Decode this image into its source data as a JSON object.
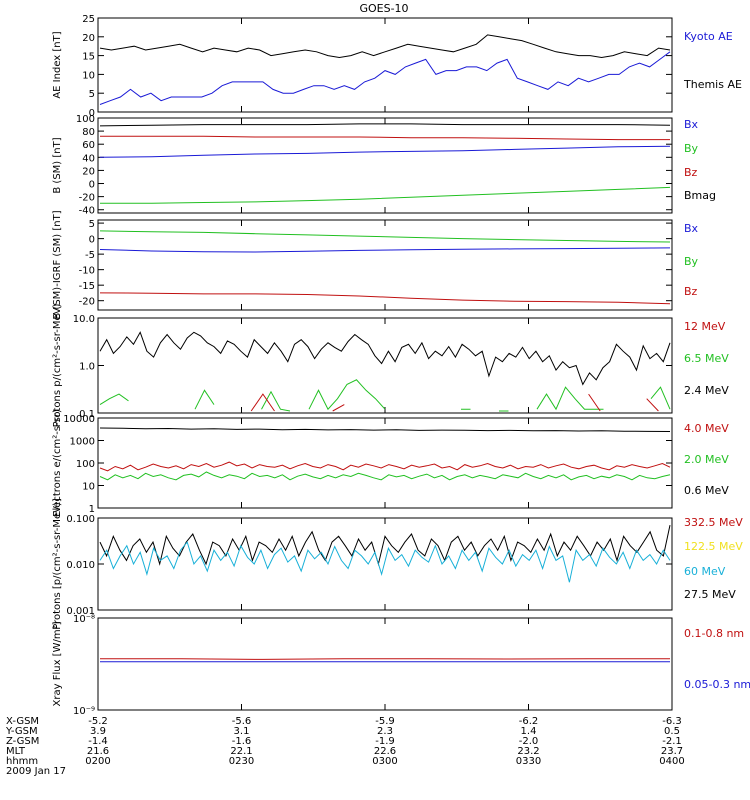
{
  "title": "GOES-10",
  "colors": {
    "black": "#000000",
    "blue": "#1a1ad6",
    "green": "#22c022",
    "red": "#c01010",
    "yellow": "#f0e020",
    "cyan": "#18b0d8"
  },
  "footer": {
    "row_labels": [
      "X-GSM",
      "Y-GSM",
      "Z-GSM",
      "MLT",
      "hhmm",
      "2009 Jan 17"
    ],
    "columns": [
      {
        "x": "-5.2",
        "y": "3.9",
        "z": "-1.4",
        "mlt": "21.6",
        "hhmm": "0200"
      },
      {
        "x": "-5.6",
        "y": "3.1",
        "z": "-1.6",
        "mlt": "22.1",
        "hhmm": "0230"
      },
      {
        "x": "-5.9",
        "y": "2.3",
        "z": "-1.9",
        "mlt": "22.6",
        "hhmm": "0300"
      },
      {
        "x": "-6.2",
        "y": "1.4",
        "z": "-2.0",
        "mlt": "23.2",
        "hhmm": "0330"
      },
      {
        "x": "-6.3",
        "y": "0.5",
        "z": "-2.1",
        "mlt": "23.7",
        "hhmm": "0400"
      }
    ]
  },
  "chart_data": [
    {
      "type": "line",
      "ylabel": "AE Index [nT]",
      "ylim": [
        0,
        25
      ],
      "yticks": [
        "0",
        "5",
        "10",
        "15",
        "20",
        "25"
      ],
      "legend": [
        {
          "name": "Kyoto AE",
          "color": "blue"
        },
        {
          "name": "Themis AE",
          "color": "black"
        }
      ],
      "series": [
        {
          "name": "Themis AE",
          "color": "black",
          "values": [
            17,
            16.5,
            17,
            17.5,
            16.5,
            17,
            17.5,
            18,
            17,
            16,
            17,
            16.5,
            16,
            17,
            16.5,
            15,
            15.5,
            16,
            16.5,
            16,
            15,
            14.5,
            15,
            16,
            15,
            16,
            17,
            18,
            17.5,
            17,
            16.5,
            16,
            17,
            18,
            20.5,
            20,
            19.5,
            19,
            18,
            17,
            16,
            15.5,
            15,
            15,
            14.5,
            15,
            16,
            15.5,
            15,
            17,
            16.5
          ]
        },
        {
          "name": "Kyoto AE",
          "color": "blue",
          "values": [
            2,
            3,
            4,
            6,
            4,
            5,
            3,
            4,
            4,
            4,
            4,
            5,
            7,
            8,
            8,
            8,
            8,
            6,
            5,
            5,
            6,
            7,
            7,
            6,
            7,
            6,
            8,
            9,
            11,
            10,
            12,
            13,
            14,
            10,
            11,
            11,
            12,
            12,
            11,
            13,
            14,
            9,
            8,
            7,
            6,
            8,
            7,
            9,
            8,
            9,
            10,
            10,
            12,
            13,
            12,
            14,
            16
          ]
        }
      ]
    },
    {
      "type": "line",
      "ylabel": "B (SM) [nT]",
      "ylim": [
        -45,
        100
      ],
      "yticks": [
        "-40",
        "-20",
        "0",
        "20",
        "40",
        "60",
        "80",
        "100"
      ],
      "legend": [
        {
          "name": "Bx",
          "color": "blue"
        },
        {
          "name": "By",
          "color": "green"
        },
        {
          "name": "Bz",
          "color": "red"
        },
        {
          "name": "Bmag",
          "color": "black"
        }
      ],
      "series": [
        {
          "name": "Bmag",
          "color": "black",
          "values": [
            88,
            89,
            90,
            90,
            90,
            91,
            91,
            90,
            90,
            90,
            90,
            89
          ]
        },
        {
          "name": "Bz",
          "color": "red",
          "values": [
            72,
            72,
            72,
            71,
            71,
            71,
            70,
            70,
            69,
            68,
            67,
            67
          ]
        },
        {
          "name": "Bx",
          "color": "blue",
          "values": [
            40,
            41,
            43,
            45,
            46,
            48,
            49,
            50,
            52,
            54,
            56,
            57
          ]
        },
        {
          "name": "By",
          "color": "green",
          "values": [
            -30,
            -30,
            -29,
            -28,
            -26,
            -24,
            -21,
            -18,
            -15,
            -12,
            -9,
            -6
          ]
        }
      ]
    },
    {
      "type": "line",
      "ylabel": "B (SM)-IGRF (SM) [nT]",
      "ylim": [
        -23,
        6
      ],
      "yticks": [
        "-20",
        "-15",
        "-10",
        "-5",
        "0",
        "5"
      ],
      "legend": [
        {
          "name": "Bx",
          "color": "blue"
        },
        {
          "name": "By",
          "color": "green"
        },
        {
          "name": "Bz",
          "color": "red"
        }
      ],
      "series": [
        {
          "name": "By",
          "color": "green",
          "values": [
            2.5,
            2.2,
            2,
            1.6,
            1.2,
            0.8,
            0.4,
            0,
            -0.3,
            -0.6,
            -0.9,
            -1.1
          ]
        },
        {
          "name": "Bx",
          "color": "blue",
          "values": [
            -3.5,
            -4,
            -4.2,
            -4.3,
            -4.1,
            -3.8,
            -3.6,
            -3.4,
            -3.3,
            -3.2,
            -3.1,
            -3.0
          ]
        },
        {
          "name": "Bz",
          "color": "red",
          "values": [
            -17.5,
            -17.6,
            -17.8,
            -17.8,
            -18,
            -18.5,
            -19.2,
            -19.8,
            -20.2,
            -20.3,
            -20.5,
            -21
          ]
        }
      ]
    },
    {
      "type": "line",
      "ylabel": "Protons p/(cm²-s-sr-MeV)",
      "yscale": "log",
      "ylim": [
        0.1,
        10
      ],
      "yticks": [
        "0.1",
        "1.0",
        "10.0"
      ],
      "legend": [
        {
          "name": "12 MeV",
          "color": "red"
        },
        {
          "name": "6.5 MeV",
          "color": "green"
        },
        {
          "name": "2.4 MeV",
          "color": "black"
        }
      ],
      "series": [
        {
          "name": "2.4 MeV",
          "color": "black",
          "values": [
            2,
            3.5,
            1.8,
            2.5,
            4,
            2.8,
            5,
            2,
            1.5,
            3,
            4.5,
            3,
            2.2,
            3.8,
            5,
            4.2,
            3,
            2.5,
            1.8,
            3.3,
            2.8,
            2,
            1.5,
            3.5,
            2.5,
            1.8,
            3,
            2,
            1.2,
            2.8,
            3.5,
            2.5,
            1.4,
            2.2,
            3,
            2.4,
            2,
            3.2,
            4.5,
            3.5,
            2.8,
            1.6,
            1.1,
            2,
            1.2,
            2.4,
            2.8,
            1.8,
            3,
            1.4,
            2,
            1.6,
            2.5,
            1.5,
            2.8,
            2.2,
            1.6,
            2,
            0.6,
            1.5,
            1.2,
            1.8,
            1.5,
            2.4,
            1.4,
            2,
            1.2,
            1.6,
            0.8,
            1.2,
            0.9,
            1,
            0.4,
            0.7,
            0.5,
            0.9,
            1.2,
            2.8,
            2,
            1.5,
            0.8,
            2.6,
            1.4,
            1.8,
            1.2,
            3
          ]
        },
        {
          "name": "6.5 MeV",
          "color": "green",
          "values": [
            0.15,
            0.2,
            0.25,
            0.18,
            null,
            null,
            null,
            0.11,
            null,
            null,
            0.12,
            0.3,
            0.15,
            null,
            null,
            null,
            null,
            0.12,
            0.28,
            0.12,
            0.11,
            null,
            0.12,
            0.3,
            0.12,
            0.2,
            0.4,
            0.5,
            0.3,
            0.2,
            0.12,
            null,
            null,
            null,
            null,
            null,
            0.12,
            null,
            0.12,
            0.12,
            null,
            null,
            0.11,
            0.11,
            null,
            null,
            0.12,
            0.25,
            0.12,
            0.35,
            0.2,
            0.12,
            0.12,
            0.12,
            null,
            null,
            0.12,
            null,
            0.2,
            0.35,
            0.12
          ]
        },
        {
          "name": "12 MeV",
          "color": "red",
          "values": [
            null,
            null,
            null,
            null,
            null,
            null,
            null,
            null,
            null,
            null,
            null,
            null,
            null,
            0.11,
            0.25,
            0.11,
            null,
            null,
            null,
            null,
            0.11,
            0.15,
            null,
            null,
            null,
            null,
            null,
            null,
            null,
            null,
            null,
            null,
            null,
            null,
            null,
            null,
            null,
            0.11,
            null,
            null,
            null,
            null,
            0.25,
            0.11,
            null,
            null,
            null,
            0.2,
            0.11,
            null
          ]
        }
      ]
    },
    {
      "type": "line",
      "ylabel": "Electrons e/(cm²-s-sr)",
      "yscale": "log",
      "ylim": [
        1,
        10000
      ],
      "yticks": [
        "1",
        "10",
        "100",
        "1000",
        "10000"
      ],
      "legend": [
        {
          "name": "4.0 MeV",
          "color": "red"
        },
        {
          "name": "2.0 MeV",
          "color": "green"
        },
        {
          "name": "0.6 MeV",
          "color": "black"
        }
      ],
      "series": [
        {
          "name": "0.6 MeV",
          "color": "black",
          "values": [
            3600,
            3500,
            3300,
            3400,
            3200,
            3300,
            3100,
            3200,
            3000,
            3100,
            2950,
            3050,
            2900,
            3000,
            2800,
            2900,
            2850,
            2750,
            2800,
            2700,
            2750,
            2650,
            2700,
            2600,
            2550,
            2500
          ]
        },
        {
          "name": "4.0 MeV",
          "color": "red",
          "values": [
            60,
            45,
            70,
            55,
            80,
            50,
            65,
            90,
            70,
            60,
            75,
            55,
            85,
            70,
            95,
            65,
            80,
            110,
            75,
            90,
            60,
            85,
            70,
            65,
            80,
            55,
            75,
            95,
            70,
            60,
            85,
            70,
            50,
            80,
            65,
            90,
            75,
            60,
            85,
            70,
            55,
            80,
            65,
            75,
            90,
            60,
            70,
            50,
            85,
            65,
            75,
            95,
            70,
            60,
            80,
            55,
            70,
            65,
            85,
            60,
            75,
            90,
            65,
            55,
            70,
            80,
            60,
            50,
            75,
            65,
            85,
            70,
            60,
            75,
            95,
            65
          ]
        },
        {
          "name": "2.0 MeV",
          "color": "green",
          "values": [
            25,
            18,
            30,
            22,
            28,
            20,
            35,
            25,
            30,
            22,
            18,
            28,
            32,
            24,
            40,
            28,
            22,
            30,
            26,
            20,
            35,
            25,
            28,
            22,
            30,
            18,
            26,
            32,
            24,
            20,
            28,
            22,
            30,
            25,
            35,
            28,
            22,
            18,
            30,
            24,
            28,
            20,
            26,
            32,
            22,
            28,
            18,
            25,
            30,
            22,
            28,
            24,
            20,
            30,
            26,
            22,
            35,
            25,
            20,
            28,
            22,
            30,
            18,
            24,
            28,
            20,
            26,
            22,
            30,
            25,
            18,
            28,
            22,
            20,
            25,
            30
          ]
        }
      ]
    },
    {
      "type": "line",
      "ylabel": "Protons [p/(cm²-s-sr-MeV)]",
      "yscale": "log",
      "ylim": [
        0.001,
        0.1
      ],
      "yticks": [
        "0.001",
        "0.010",
        "0.100"
      ],
      "legend": [
        {
          "name": "332.5 MeV",
          "color": "red"
        },
        {
          "name": "122.5 MeV",
          "color": "yellow"
        },
        {
          "name": "60 MeV",
          "color": "cyan"
        },
        {
          "name": "27.5 MeV",
          "color": "black"
        }
      ],
      "series": [
        {
          "name": "27.5 MeV",
          "color": "black",
          "values": [
            0.03,
            0.015,
            0.04,
            0.02,
            0.012,
            0.025,
            0.035,
            0.018,
            0.03,
            0.01,
            0.04,
            0.022,
            0.015,
            0.03,
            0.045,
            0.02,
            0.01,
            0.03,
            0.025,
            0.015,
            0.035,
            0.02,
            0.04,
            0.012,
            0.03,
            0.025,
            0.018,
            0.035,
            0.02,
            0.04,
            0.015,
            0.03,
            0.05,
            0.02,
            0.012,
            0.03,
            0.04,
            0.025,
            0.015,
            0.035,
            0.02,
            0.03,
            0.01,
            0.04,
            0.025,
            0.018,
            0.03,
            0.045,
            0.02,
            0.015,
            0.035,
            0.025,
            0.012,
            0.03,
            0.04,
            0.02,
            0.03,
            0.015,
            0.025,
            0.035,
            0.02,
            0.04,
            0.012,
            0.03,
            0.025,
            0.018,
            0.035,
            0.02,
            0.045,
            0.015,
            0.03,
            0.02,
            0.04,
            0.025,
            0.015,
            0.03,
            0.02,
            0.035,
            0.012,
            0.04,
            0.025,
            0.018,
            0.03,
            0.05,
            0.02,
            0.015,
            0.07
          ]
        },
        {
          "name": "60 MeV",
          "color": "cyan",
          "values": [
            0.012,
            0.02,
            0.008,
            0.015,
            0.025,
            0.01,
            0.018,
            0.006,
            0.022,
            0.012,
            0.015,
            0.008,
            0.02,
            0.03,
            0.01,
            0.015,
            0.007,
            0.02,
            0.012,
            0.018,
            0.009,
            0.025,
            0.014,
            0.01,
            0.02,
            0.008,
            0.016,
            0.022,
            0.011,
            0.015,
            0.007,
            0.02,
            0.013,
            0.018,
            0.01,
            0.024,
            0.012,
            0.008,
            0.02,
            0.015,
            0.01,
            0.018,
            0.006,
            0.022,
            0.012,
            0.016,
            0.009,
            0.02,
            0.014,
            0.011,
            0.025,
            0.01,
            0.015,
            0.008,
            0.02,
            0.012,
            0.018,
            0.007,
            0.022,
            0.014,
            0.01,
            0.02,
            0.009,
            0.016,
            0.012,
            0.02,
            0.008,
            0.024,
            0.012,
            0.015,
            0.004,
            0.02,
            0.012,
            0.016,
            0.009,
            0.022,
            0.014,
            0.01,
            0.018,
            0.008,
            0.02,
            0.012,
            0.016,
            0.01,
            0.02,
            0.012
          ]
        }
      ]
    },
    {
      "type": "line",
      "ylabel": "Xray Flux [W/m²]",
      "yscale": "log",
      "ylim": [
        1e-09,
        1e-08
      ],
      "yticks": [
        "10⁻⁹",
        "10⁻⁸"
      ],
      "legend": [
        {
          "name": "0.1-0.8 nm",
          "color": "red"
        },
        {
          "name": "0.05-0.3 nm",
          "color": "blue"
        }
      ],
      "series": [
        {
          "name": "0.1-0.8 nm",
          "color": "red",
          "values": [
            3.6e-09,
            3.6e-09,
            3.55e-09,
            3.6e-09,
            3.6e-09,
            3.58e-09,
            3.6e-09,
            3.6e-09
          ]
        },
        {
          "name": "0.05-0.3 nm",
          "color": "blue",
          "values": [
            3.35e-09,
            3.35e-09,
            3.35e-09,
            3.35e-09,
            3.34e-09,
            3.35e-09,
            3.35e-09,
            3.35e-09
          ]
        }
      ]
    }
  ]
}
